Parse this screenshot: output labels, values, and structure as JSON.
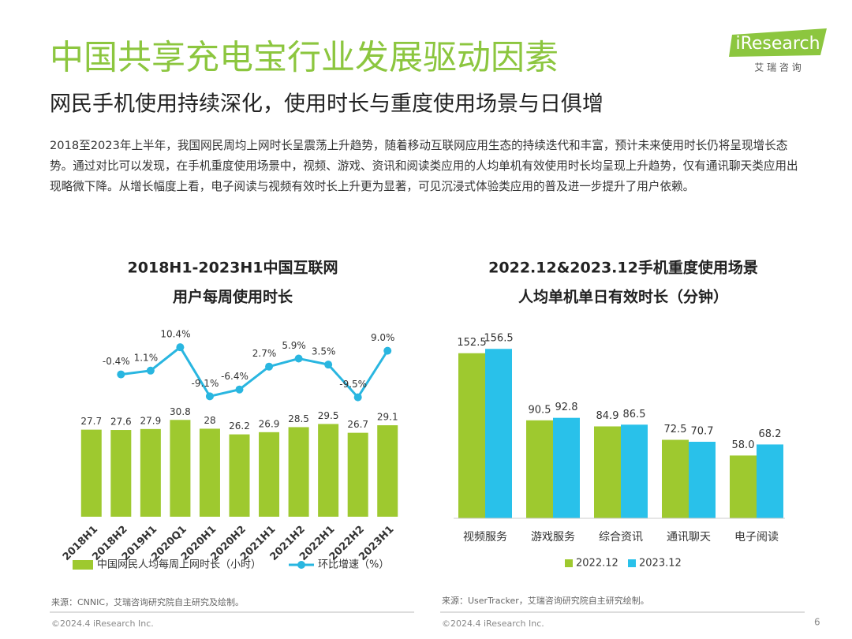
{
  "header": {
    "title": "中国共享充电宝行业发展驱动因素",
    "subtitle": "网民手机使用持续深化，使用时长与重度使用场景与日俱增",
    "logo": "iResearch",
    "logo_cn": "艾 瑞 咨 询"
  },
  "summary": "2018至2023年上半年，我国网民周均上网时长呈震荡上升趋势，随着移动互联网应用生态的持续迭代和丰富，预计未来使用时长仍将呈现增长态势。通过对比可以发现，在手机重度使用场景中，视频、游戏、资讯和阅读类应用的人均单机有效使用时长均呈现上升趋势，仅有通讯聊天类应用出现略微下降。从增长幅度上看，电子阅读与视频有效时长上升更为显著，可见沉浸式体验类应用的普及进一步提升了用户依赖。",
  "chart_data": [
    {
      "type": "combo",
      "title": [
        "2018H1-2023H1中国互联网",
        "用户每周使用时长"
      ],
      "categories": [
        "2018H1",
        "2018H2",
        "2019H1",
        "2020Q1",
        "2020H1",
        "2020H2",
        "2021H1",
        "2021H2",
        "2022H1",
        "2022H2",
        "2023H1"
      ],
      "ylim": [
        0,
        64
      ],
      "y2lim": [
        -57,
        23
      ],
      "series": [
        {
          "name": "中国网民人均每周上网时长（小时）",
          "type": "bar",
          "color": "#9ec92f",
          "values": [
            27.7,
            27.6,
            27.9,
            30.8,
            28,
            26.2,
            26.9,
            28.5,
            29.5,
            26.7,
            29.1
          ]
        },
        {
          "name": "环比增速（%）",
          "type": "line",
          "axis": "y2",
          "color": "#29b6e0",
          "values": [
            null,
            -0.4,
            1.1,
            10.4,
            -9.1,
            -6.4,
            2.7,
            5.9,
            3.5,
            -9.5,
            9.0
          ],
          "value_labels": [
            null,
            "-0.4%",
            "1.1%",
            "10.4%",
            "-9.1%",
            "-6.4%",
            "2.7%",
            "5.9%",
            "3.5%",
            "-9.5%",
            "9.0%"
          ]
        }
      ]
    },
    {
      "type": "bar",
      "title": [
        "2022.12&2023.12手机重度使用场景",
        "人均单机单日有效时长（分钟）"
      ],
      "categories": [
        "视频服务",
        "游戏服务",
        "综合资讯",
        "通讯聊天",
        "电子阅读"
      ],
      "ylim": [
        0,
        180
      ],
      "series": [
        {
          "name": "2022.12",
          "color": "#9ec92f",
          "values": [
            152.5,
            90.5,
            84.9,
            72.5,
            58.0
          ],
          "value_labels": [
            "152.5",
            "90.5",
            "84.9",
            "72.5",
            "58.0"
          ]
        },
        {
          "name": "2023.12",
          "color": "#29c1ea",
          "values": [
            156.5,
            92.8,
            86.5,
            70.7,
            68.2
          ]
        }
      ]
    }
  ],
  "sources": [
    "来源：CNNIC，艾瑞咨询研究院自主研究及绘制。",
    "来源：UserTracker，艾瑞咨询研究院自主研究绘制。"
  ],
  "footer": {
    "copyright": [
      "©2024.4 iResearch Inc.",
      "©2024.4 iResearch Inc."
    ],
    "page": 6
  }
}
